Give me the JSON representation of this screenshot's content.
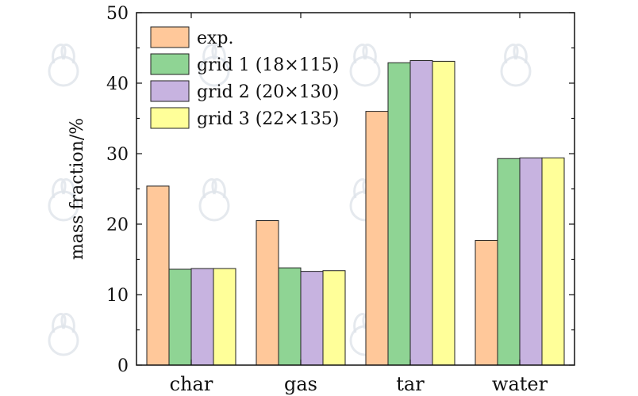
{
  "chart_data": {
    "type": "bar",
    "title": "",
    "xlabel": "",
    "ylabel": "mass fraction/%",
    "ylim": [
      0,
      50
    ],
    "yticks": [
      0,
      10,
      20,
      30,
      40,
      50
    ],
    "grid": false,
    "legend_position": "top-left",
    "categories": [
      "char",
      "gas",
      "tar",
      "water"
    ],
    "series": [
      {
        "name": "exp.",
        "color": "#ffc89a",
        "values": [
          25.4,
          20.5,
          36.0,
          17.7
        ]
      },
      {
        "name": "grid 1 (18×115)",
        "color": "#8fd494",
        "values": [
          13.6,
          13.8,
          42.9,
          29.3
        ]
      },
      {
        "name": "grid 2 (20×130)",
        "color": "#c7b3e0",
        "values": [
          13.7,
          13.3,
          43.2,
          29.4
        ]
      },
      {
        "name": "grid 3 (22×135)",
        "color": "#ffff99",
        "values": [
          13.7,
          13.4,
          43.1,
          29.4
        ]
      }
    ]
  }
}
